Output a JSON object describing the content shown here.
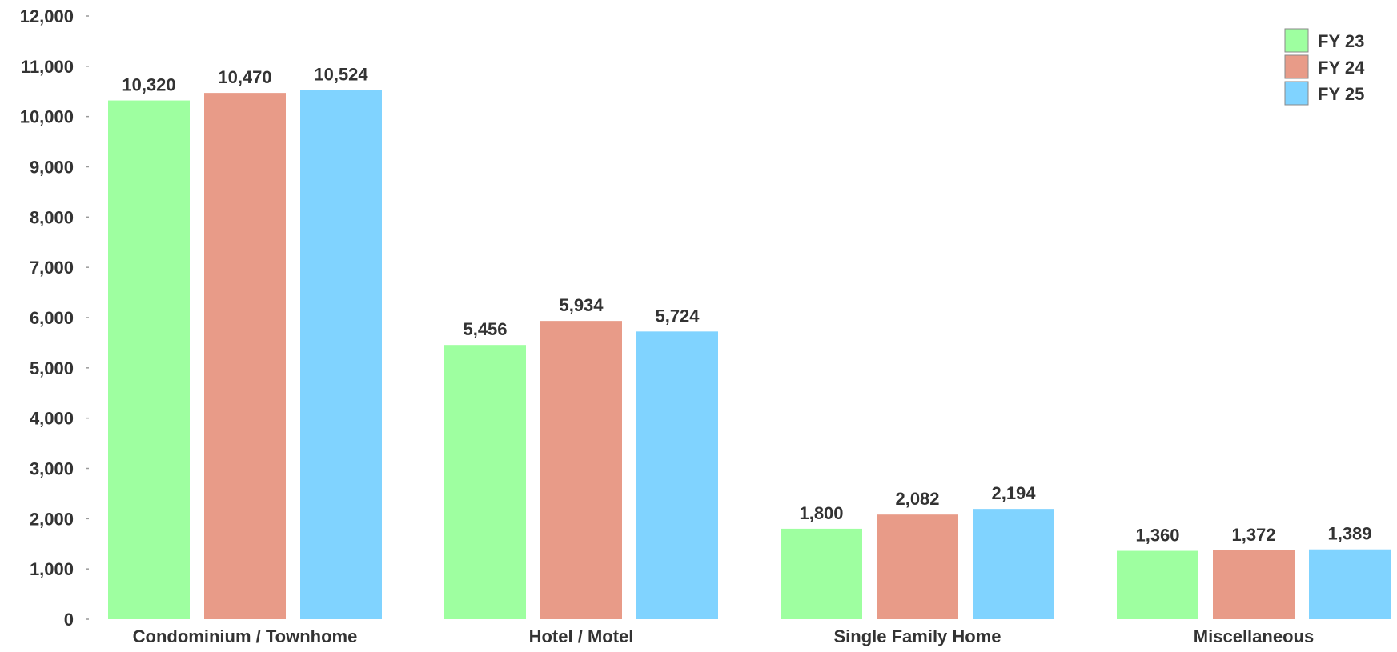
{
  "chart_data": {
    "type": "bar",
    "title": "",
    "xlabel": "",
    "ylabel": "",
    "categories": [
      "Condominium / Townhome",
      "Hotel / Motel",
      "Single Family Home",
      "Miscellaneous"
    ],
    "series": [
      {
        "name": "FY 23",
        "color": "#9effa0",
        "values": [
          10320,
          5456,
          1800,
          1360
        ]
      },
      {
        "name": "FY 24",
        "color": "#e89b88",
        "values": [
          10470,
          5934,
          2082,
          1372
        ]
      },
      {
        "name": "FY 25",
        "color": "#80d3ff",
        "values": [
          10524,
          5724,
          2194,
          1389
        ]
      }
    ],
    "data_labels": [
      [
        "10,320",
        "5,456",
        "1,800",
        "1,360"
      ],
      [
        "10,470",
        "5,934",
        "2,082",
        "1,372"
      ],
      [
        "10,524",
        "5,724",
        "2,194",
        "1,389"
      ]
    ],
    "ylim": [
      0,
      12000
    ],
    "yticks": [
      0,
      1000,
      2000,
      3000,
      4000,
      5000,
      6000,
      7000,
      8000,
      9000,
      10000,
      11000,
      12000
    ],
    "ytick_labels": [
      "0",
      "1,000",
      "2,000",
      "3,000",
      "4,000",
      "5,000",
      "6,000",
      "7,000",
      "8,000",
      "9,000",
      "10,000",
      "11,000",
      "12,000"
    ],
    "grid": false,
    "legend_position": "top-right"
  }
}
